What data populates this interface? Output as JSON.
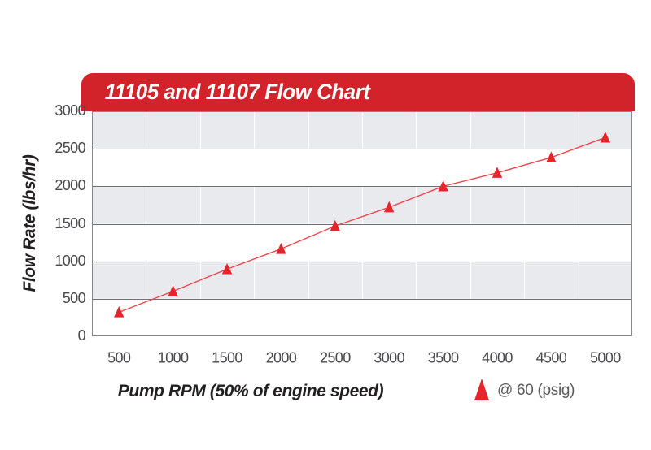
{
  "header": {
    "title": "11105 and 11107 Flow Chart",
    "background_color": "#d2232a",
    "text_color": "#ffffff"
  },
  "chart_data": {
    "type": "line",
    "title": "11105 and 11107 Flow Chart",
    "xlabel": "Pump RPM (50% of engine speed)",
    "ylabel": "Flow Rate (lbs/hr)",
    "x": [
      500,
      1000,
      1500,
      2000,
      2500,
      3000,
      3500,
      4000,
      4500,
      5000
    ],
    "series": [
      {
        "name": "@ 60 (psig)",
        "marker": "triangle",
        "marker_color": "#e6242c",
        "line_color": "#ef464d",
        "values": [
          320,
          600,
          895,
          1165,
          1470,
          1720,
          2000,
          2180,
          2385,
          2650
        ]
      }
    ],
    "ylim": [
      0,
      3000
    ],
    "ytick_step": 500,
    "grid": "horizontal alternating bands of 500 units, white vertical column separators",
    "band_colors": [
      "#e9eaee",
      "#ffffff"
    ],
    "gridline_color": "#6f7073",
    "border_color": "#85878a",
    "legend_position": "bottom-right outside plot"
  },
  "legend": {
    "label": "@ 60 (psig)"
  }
}
